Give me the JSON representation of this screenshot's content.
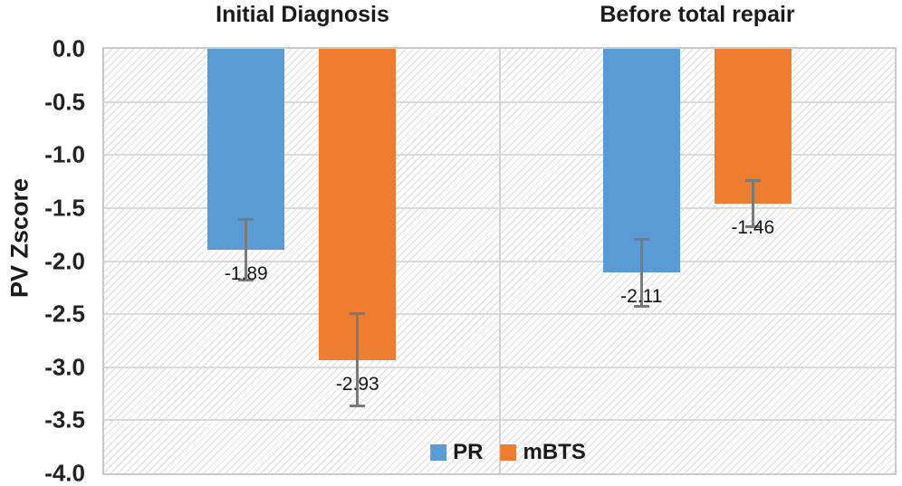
{
  "chart_data": {
    "type": "bar",
    "categories": [
      "Initial Diagnosis",
      "Before total repair"
    ],
    "series": [
      {
        "name": "PR",
        "color": "#5B9BD5",
        "values": [
          -1.89,
          -2.11
        ],
        "errors": [
          0.29,
          0.32
        ],
        "labels": [
          "-1.89",
          "-2.11"
        ]
      },
      {
        "name": "mBTS",
        "color": "#ED7D31",
        "values": [
          -2.93,
          -1.46
        ],
        "errors": [
          0.44,
          0.22
        ],
        "labels": [
          "-2.93",
          "-1.46"
        ]
      }
    ],
    "xlabel": "",
    "ylabel": "PV Zscore",
    "ylim": [
      -4.0,
      0.0
    ],
    "ytick_step": 0.5,
    "yticks": [
      "0.0",
      "-0.5",
      "-1.0",
      "-1.5",
      "-2.0",
      "-2.5",
      "-3.0",
      "-3.5",
      "-4.0"
    ],
    "grid": true,
    "legend_position": "bottom-inside",
    "colors": {
      "error_bar": "#7a7a7a",
      "gridline": "#d9d9d9",
      "plot_border": "#c9c9c9"
    }
  }
}
